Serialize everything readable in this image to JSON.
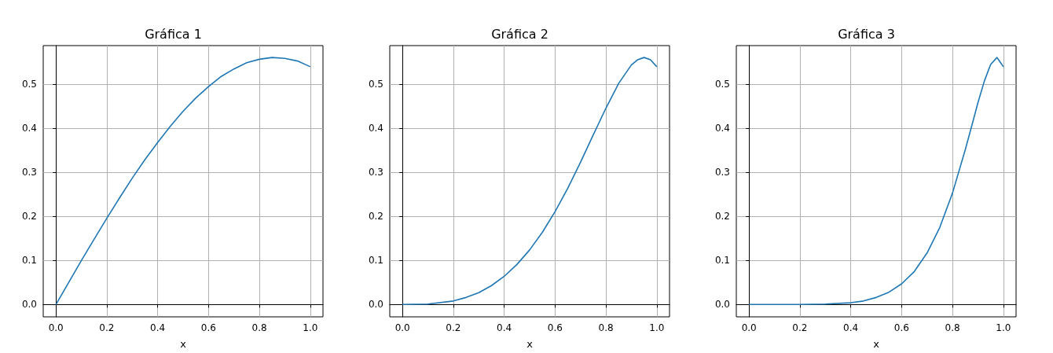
{
  "chart_data": [
    {
      "type": "line",
      "title": "Gráfica 1",
      "xlabel": "x",
      "grid": true,
      "marker": "none",
      "line_style": "solid",
      "xlim": [
        -0.05,
        1.05
      ],
      "ylim": [
        -0.028,
        0.588
      ],
      "xticks": [
        {
          "value": 0,
          "label": "0.0"
        },
        {
          "value": 0.2,
          "label": "0.2"
        },
        {
          "value": 0.4,
          "label": "0.4"
        },
        {
          "value": 0.6,
          "label": "0.6"
        },
        {
          "value": 0.8,
          "label": "0.8"
        },
        {
          "value": 1,
          "label": "1.0"
        }
      ],
      "yticks": [
        {
          "value": 0,
          "label": "0.0"
        },
        {
          "value": 0.1,
          "label": "0.1"
        },
        {
          "value": 0.2,
          "label": "0.2"
        },
        {
          "value": 0.3,
          "label": "0.3"
        },
        {
          "value": 0.4,
          "label": "0.4"
        },
        {
          "value": 0.5,
          "label": "0.5"
        }
      ],
      "series": [
        {
          "color": "#1f77b4",
          "x": [
            0,
            0.05,
            0.1,
            0.15,
            0.2,
            0.25,
            0.3,
            0.35,
            0.4,
            0.45,
            0.5,
            0.55,
            0.6,
            0.65,
            0.7,
            0.75,
            0.8,
            0.85,
            0.9,
            0.95,
            1
          ],
          "values": [
            0,
            0.05,
            0.1,
            0.148,
            0.196,
            0.242,
            0.287,
            0.329,
            0.368,
            0.405,
            0.439,
            0.469,
            0.495,
            0.518,
            0.535,
            0.549,
            0.557,
            0.561,
            0.559,
            0.553,
            0.54
          ]
        }
      ]
    },
    {
      "type": "line",
      "title": "Gráfica 2",
      "xlabel": "x",
      "grid": true,
      "marker": "none",
      "line_style": "solid",
      "xlim": [
        -0.05,
        1.05
      ],
      "ylim": [
        -0.028,
        0.588
      ],
      "xticks": [
        {
          "value": 0,
          "label": "0.0"
        },
        {
          "value": 0.2,
          "label": "0.2"
        },
        {
          "value": 0.4,
          "label": "0.4"
        },
        {
          "value": 0.6,
          "label": "0.6"
        },
        {
          "value": 0.8,
          "label": "0.8"
        },
        {
          "value": 1,
          "label": "1.0"
        }
      ],
      "yticks": [
        {
          "value": 0,
          "label": "0.0"
        },
        {
          "value": 0.1,
          "label": "0.1"
        },
        {
          "value": 0.2,
          "label": "0.2"
        },
        {
          "value": 0.3,
          "label": "0.3"
        },
        {
          "value": 0.4,
          "label": "0.4"
        },
        {
          "value": 0.5,
          "label": "0.5"
        }
      ],
      "series": [
        {
          "color": "#1f77b4",
          "x": [
            0,
            0.1,
            0.2,
            0.25,
            0.3,
            0.35,
            0.4,
            0.45,
            0.5,
            0.55,
            0.6,
            0.65,
            0.7,
            0.75,
            0.8,
            0.85,
            0.9,
            0.925,
            0.95,
            0.975,
            1
          ],
          "values": [
            0,
            0.001,
            0.008,
            0.016,
            0.027,
            0.043,
            0.064,
            0.091,
            0.124,
            0.164,
            0.211,
            0.264,
            0.323,
            0.385,
            0.446,
            0.502,
            0.544,
            0.556,
            0.561,
            0.556,
            0.54
          ]
        }
      ]
    },
    {
      "type": "line",
      "title": "Gráfica 3",
      "xlabel": "x",
      "grid": true,
      "marker": "none",
      "line_style": "solid",
      "xlim": [
        -0.05,
        1.05
      ],
      "ylim": [
        -0.028,
        0.588
      ],
      "xticks": [
        {
          "value": 0,
          "label": "0.0"
        },
        {
          "value": 0.2,
          "label": "0.2"
        },
        {
          "value": 0.4,
          "label": "0.4"
        },
        {
          "value": 0.6,
          "label": "0.6"
        },
        {
          "value": 0.8,
          "label": "0.8"
        },
        {
          "value": 1,
          "label": "1.0"
        }
      ],
      "yticks": [
        {
          "value": 0,
          "label": "0.0"
        },
        {
          "value": 0.1,
          "label": "0.1"
        },
        {
          "value": 0.2,
          "label": "0.2"
        },
        {
          "value": 0.3,
          "label": "0.3"
        },
        {
          "value": 0.4,
          "label": "0.4"
        },
        {
          "value": 0.5,
          "label": "0.5"
        }
      ],
      "series": [
        {
          "color": "#1f77b4",
          "x": [
            0,
            0.2,
            0.3,
            0.4,
            0.45,
            0.5,
            0.55,
            0.6,
            0.65,
            0.7,
            0.75,
            0.8,
            0.85,
            0.875,
            0.9,
            0.925,
            0.95,
            0.975,
            1
          ],
          "values": [
            0,
            0,
            0.001,
            0.004,
            0.008,
            0.016,
            0.028,
            0.047,
            0.075,
            0.117,
            0.175,
            0.253,
            0.351,
            0.404,
            0.458,
            0.507,
            0.545,
            0.561,
            0.54
          ]
        }
      ]
    }
  ]
}
